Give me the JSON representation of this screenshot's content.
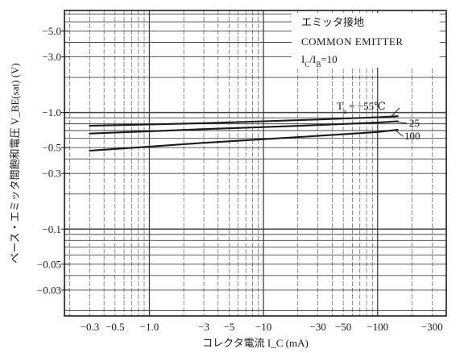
{
  "chart_data": {
    "type": "line",
    "title": "",
    "xlabel": "コレクタ電流 I_C (mA)",
    "ylabel": "ベース・エミッタ間飽和電圧 V_BE(sat) (V)",
    "xscale": "log",
    "yscale": "log",
    "xlim": [
      -0.18,
      -400
    ],
    "ylim": [
      -0.018,
      -7.5
    ],
    "grid": true,
    "x_tick_labels": [
      "−0.3",
      "−0.5",
      "−1.0",
      "−3",
      "−5",
      "−10",
      "−30",
      "−50",
      "−100",
      "−300"
    ],
    "x_ticks": [
      -0.3,
      -0.5,
      -1.0,
      -3,
      -5,
      -10,
      -30,
      -50,
      -100,
      -300
    ],
    "y_tick_labels": [
      "−5.0",
      "−3.0",
      "−1.0",
      "−0.5",
      "−0.3",
      "−0.1",
      "−0.05",
      "−0.03"
    ],
    "y_ticks": [
      -5.0,
      -3.0,
      -1.0,
      -0.5,
      -0.3,
      -0.1,
      -0.05,
      -0.03
    ],
    "annotations": {
      "line1": "エミッタ接地",
      "line2": "COMMON EMITTER",
      "condition": "I_C/I_B = 10",
      "ta_label": "T_a = −55℃"
    },
    "series": [
      {
        "name": "−55℃",
        "label": "T_a = −55℃",
        "x": [
          -0.3,
          -1,
          -3,
          -10,
          -30,
          -100,
          -150
        ],
        "y": [
          -0.77,
          -0.79,
          -0.81,
          -0.84,
          -0.87,
          -0.91,
          -0.93
        ]
      },
      {
        "name": "25",
        "label": "25",
        "x": [
          -0.3,
          -1,
          -3,
          -10,
          -30,
          -100,
          -150
        ],
        "y": [
          -0.66,
          -0.69,
          -0.72,
          -0.75,
          -0.78,
          -0.82,
          -0.84
        ]
      },
      {
        "name": "100",
        "label": "100",
        "x": [
          -0.3,
          -1,
          -3,
          -10,
          -30,
          -100,
          -150
        ],
        "y": [
          -0.47,
          -0.51,
          -0.55,
          -0.59,
          -0.63,
          -0.68,
          -0.71
        ]
      }
    ],
    "colors": {
      "ink": "#1a1a1a",
      "grid": "#444444",
      "background": "#ffffff"
    }
  }
}
